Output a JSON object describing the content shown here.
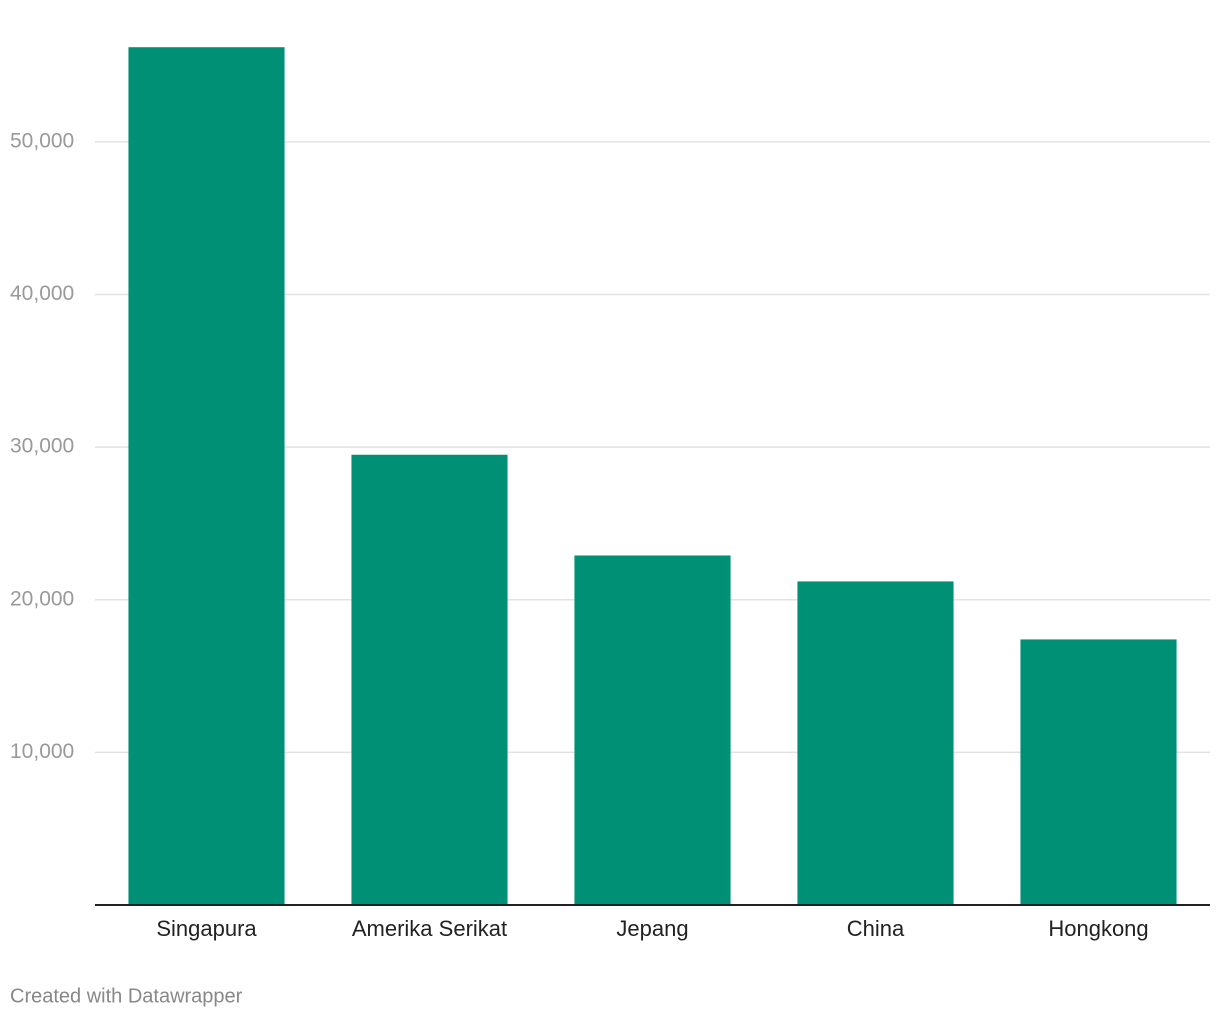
{
  "chart_data": {
    "type": "bar",
    "categories": [
      "Singapura",
      "Amerika Serikat",
      "Jepang",
      "China",
      "Hongkong"
    ],
    "values": [
      56200,
      29500,
      22900,
      21200,
      17400
    ],
    "color": "#009075",
    "ylim": [
      0,
      57000
    ],
    "yticks": [
      {
        "value": 10000,
        "label": "10,000"
      },
      {
        "value": 20000,
        "label": "20,000"
      },
      {
        "value": 30000,
        "label": "30,000"
      },
      {
        "value": 40000,
        "label": "40,000"
      },
      {
        "value": 50000,
        "label": "50,000"
      }
    ],
    "grid": true,
    "credit": "Created with Datawrapper"
  }
}
